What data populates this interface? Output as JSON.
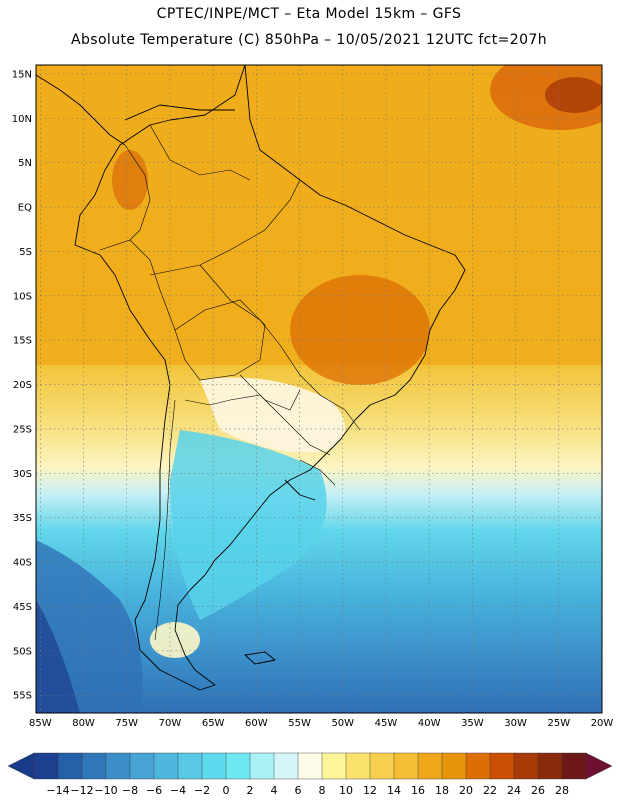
{
  "header": {
    "line1": "CPTEC/INPE/MCT –  Eta Model 15km – GFS",
    "line2": "Absolute Temperature (C) 850hPa – 10/05/2021 12UTC fct=207h"
  },
  "map": {
    "lat_labels": [
      "15N",
      "10N",
      "5N",
      "EQ",
      "5S",
      "10S",
      "15S",
      "20S",
      "25S",
      "30S",
      "35S",
      "40S",
      "45S",
      "50S",
      "55S"
    ],
    "lat_values": [
      15,
      10,
      5,
      0,
      -5,
      -10,
      -15,
      -20,
      -25,
      -30,
      -35,
      -40,
      -45,
      -50,
      -55
    ],
    "lon_labels": [
      "85W",
      "80W",
      "75W",
      "70W",
      "65W",
      "60W",
      "55W",
      "50W",
      "45W",
      "40W",
      "35W",
      "30W",
      "25W",
      "20W"
    ],
    "lon_values": [
      -85,
      -80,
      -75,
      -70,
      -65,
      -60,
      -55,
      -50,
      -45,
      -40,
      -35,
      -30,
      -25,
      -20
    ],
    "extent": {
      "west": -85.5,
      "east": -20,
      "north": 16,
      "south": -57
    },
    "grid": true,
    "variable": "Absolute Temperature (C) 850hPa"
  },
  "colorbar": {
    "tick_labels": [
      "-14",
      "-12",
      "-10",
      "-8",
      "-6",
      "-4",
      "-2",
      "0",
      "2",
      "4",
      "6",
      "8",
      "10",
      "12",
      "14",
      "16",
      "18",
      "20",
      "22",
      "24",
      "26",
      "28"
    ],
    "colors": [
      "#1c3f8f",
      "#2560a8",
      "#2f77b8",
      "#3c8ec8",
      "#47a4d4",
      "#4fb7de",
      "#58c8e6",
      "#5fd9ec",
      "#6ee8f0",
      "#a9f1f5",
      "#d4f6fa",
      "#fdfbe8",
      "#fdf59a",
      "#fbe26a",
      "#f8d04f",
      "#f5bf35",
      "#eea61a",
      "#e69508",
      "#dc6e04",
      "#c85000",
      "#a83a08",
      "#8a2a0c",
      "#6e1818"
    ]
  },
  "legend_color": {
    "below_min": "#1a3a8a",
    "above_max": "#6e1030"
  }
}
